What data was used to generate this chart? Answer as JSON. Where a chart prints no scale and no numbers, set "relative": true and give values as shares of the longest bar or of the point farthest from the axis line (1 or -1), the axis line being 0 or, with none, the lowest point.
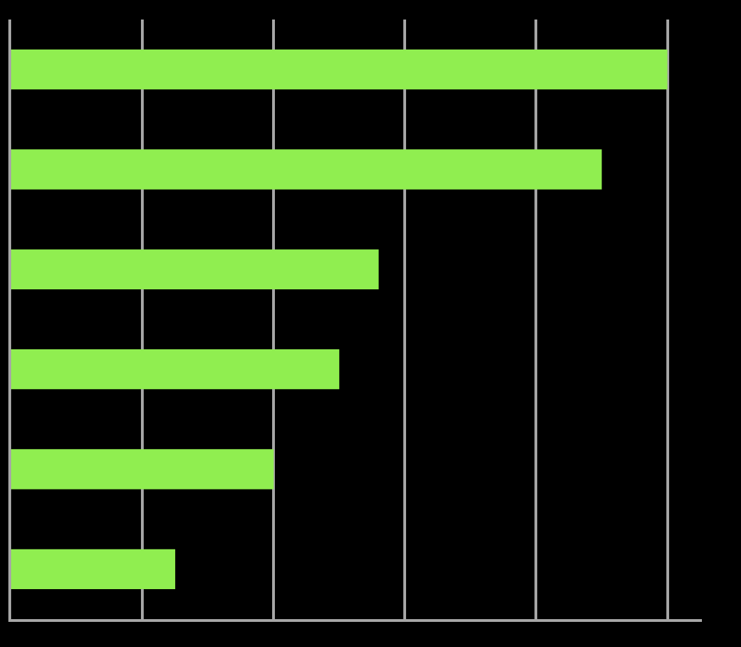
{
  "chart_data": {
    "type": "bar",
    "orientation": "horizontal",
    "relative": true,
    "categories": [
      null,
      null,
      null,
      null,
      null,
      null
    ],
    "values": [
      1,
      0.9,
      0.56,
      0.5,
      0.4,
      0.25
    ],
    "color": "#90ee50",
    "grid": "x"
  }
}
